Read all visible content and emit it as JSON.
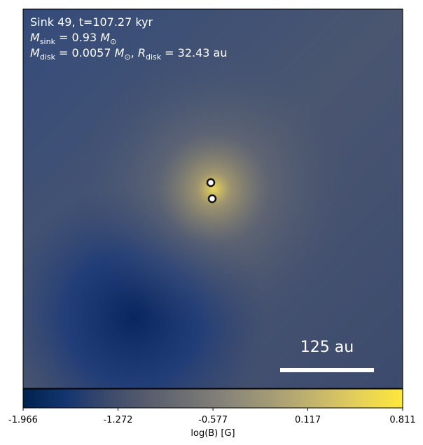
{
  "chart_data": {
    "type": "image",
    "annotations": [
      [
        {
          "t": "Sink 49, t=107.27 kyr"
        }
      ],
      [
        {
          "i": "M"
        },
        {
          "sub": "sink"
        },
        {
          "t": " = 0.93 "
        },
        {
          "i": "M"
        },
        {
          "sub": "⊙"
        }
      ],
      [
        {
          "i": "M"
        },
        {
          "sub": "disk"
        },
        {
          "t": " = 0.0057 "
        },
        {
          "i": "M"
        },
        {
          "sub": "⊙"
        },
        {
          "t": ", "
        },
        {
          "i": "R"
        },
        {
          "sub": "disk"
        },
        {
          "t": " = 32.43 au"
        }
      ]
    ],
    "scale_bar": "125 au",
    "colorbar": {
      "label": "log(B) [G]",
      "clim": [
        -1.966,
        0.811
      ],
      "ticks": [
        -1.966,
        -1.272,
        -0.577,
        0.117,
        0.811
      ]
    }
  }
}
